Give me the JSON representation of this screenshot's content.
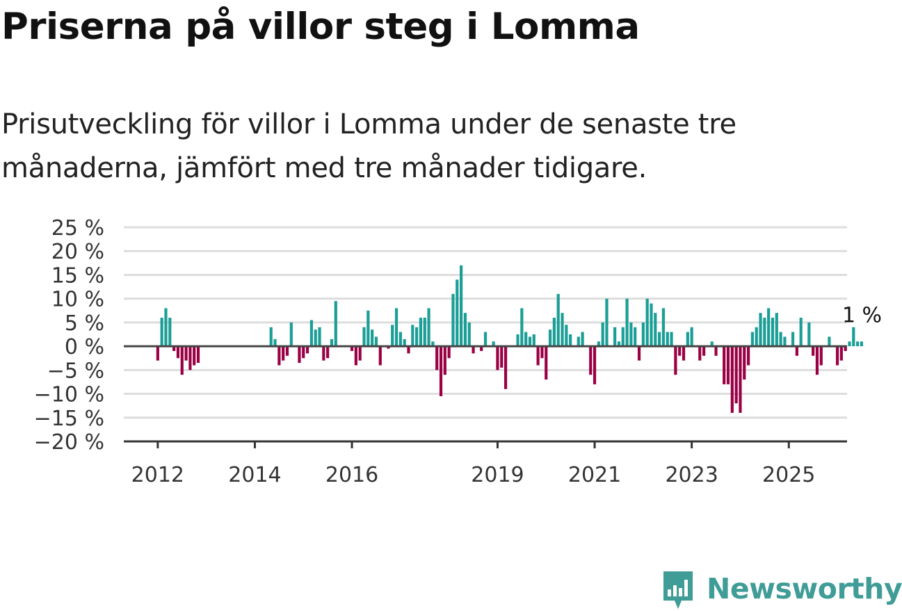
{
  "header": {
    "title": "Priserna på villor steg i Lomma",
    "subtitle": "Prisutveckling för villor i Lomma under de senaste tre månaderna, jämfört med tre månader tidigare."
  },
  "brand": {
    "name": "Newsworthy",
    "color": "#3f9c96",
    "icon": "bar-chart-icon"
  },
  "chart_data": {
    "type": "bar",
    "title": "Priserna på villor steg i Lomma",
    "xlabel": "",
    "ylabel": "",
    "ylim": [
      -20,
      25
    ],
    "yticks": [
      25,
      20,
      15,
      10,
      5,
      0,
      -5,
      -10,
      -15,
      -20
    ],
    "ytick_labels": [
      "25 %",
      "20 %",
      "15 %",
      "10 %",
      "5 %",
      "0 %",
      "−5 %",
      "−10 %",
      "−15 %",
      "−20 %"
    ],
    "xticks": [
      {
        "label": "2012",
        "value": 2012
      },
      {
        "label": "2014",
        "value": 2014
      },
      {
        "label": "2016",
        "value": 2016
      },
      {
        "label": "2019",
        "value": 2019
      },
      {
        "label": "2021",
        "value": 2021
      },
      {
        "label": "2023",
        "value": 2023
      },
      {
        "label": "2025",
        "value": 2025
      }
    ],
    "xlim": [
      2011.3,
      2026.2
    ],
    "grid": true,
    "legend": "none",
    "positive_color": "#1a9e96",
    "negative_color": "#9a0044",
    "start": "2012-01",
    "bar_width": 0.06,
    "values": [
      -3,
      6,
      8,
      6,
      -1,
      -2.5,
      -6,
      -3,
      -5,
      -4,
      -3.5,
      null,
      null,
      null,
      null,
      null,
      null,
      null,
      null,
      null,
      null,
      null,
      null,
      null,
      null,
      null,
      null,
      null,
      4,
      1.5,
      -4,
      -3,
      -2,
      5,
      null,
      -3.5,
      -2.5,
      -1.5,
      5.5,
      3.5,
      4,
      -3,
      -2.5,
      1.5,
      9.5,
      null,
      null,
      null,
      -1,
      -4,
      -3,
      4,
      7.5,
      3.5,
      2,
      -4,
      null,
      -0.5,
      4.5,
      8,
      3,
      1.5,
      -1.5,
      4.5,
      4,
      6,
      6,
      8,
      1,
      -5,
      -10.5,
      -6,
      -2.5,
      11,
      14,
      17,
      7,
      5,
      -1.5,
      null,
      -1,
      3,
      null,
      1,
      -5,
      -4.5,
      -9,
      null,
      null,
      2.5,
      8,
      3,
      2,
      2.5,
      -4,
      -2.5,
      -7,
      3.5,
      6,
      11,
      7,
      4.5,
      2.5,
      null,
      2,
      3,
      null,
      -6,
      -8,
      1,
      5,
      10,
      null,
      4,
      1,
      4,
      10,
      5,
      4,
      -3,
      5,
      10,
      9,
      7,
      3,
      8,
      3,
      3,
      -6,
      -2,
      -3,
      3,
      4,
      null,
      -3,
      -2,
      null,
      1,
      -2,
      null,
      -8,
      -8,
      -14,
      -12,
      -14,
      -7,
      -4,
      3,
      4,
      7,
      6,
      8,
      6,
      7,
      3,
      2,
      null,
      3,
      -2,
      6,
      null,
      5,
      -2,
      -6,
      -4,
      null,
      2,
      null,
      -4,
      -3,
      -1,
      1,
      4,
      1,
      1
    ],
    "annotation": {
      "text": "1 %",
      "value": 1
    }
  }
}
